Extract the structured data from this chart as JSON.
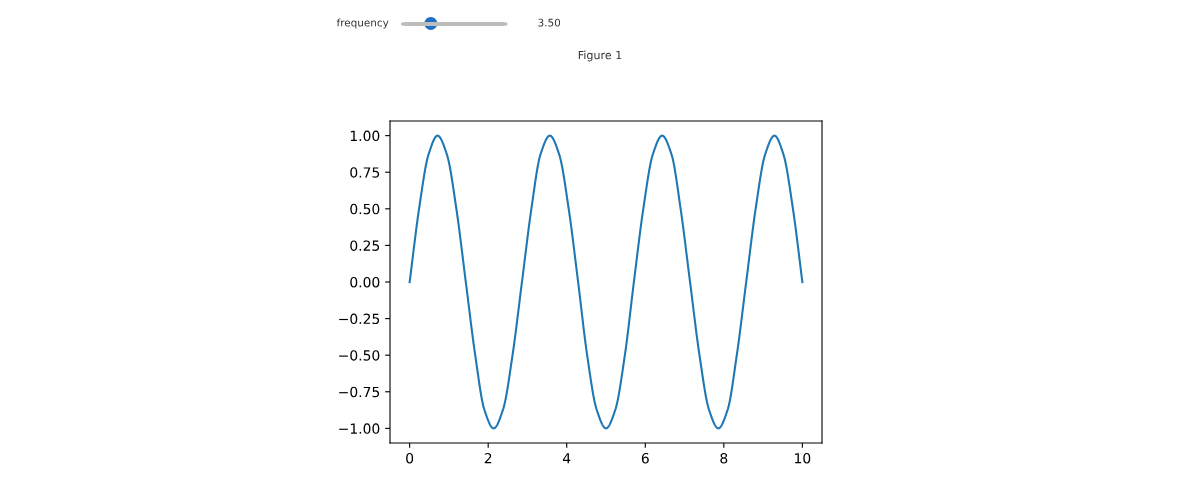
{
  "chart_data": {
    "type": "line",
    "title": "Figure 1",
    "annotations": [
      "frequency",
      "3.50"
    ],
    "x": [
      0,
      0.24,
      0.48,
      0.71,
      0.95,
      1.19,
      1.43,
      1.67,
      1.9,
      2.14,
      2.38,
      2.62,
      2.86,
      3.1,
      3.33,
      3.57,
      3.81,
      4.05,
      4.29,
      4.52,
      4.76,
      5,
      5.24,
      5.48,
      5.71,
      5.95,
      6.19,
      6.43,
      6.67,
      6.9,
      7.14,
      7.38,
      7.62,
      7.86,
      8.1,
      8.33,
      8.57,
      8.81,
      9.05,
      9.29,
      9.52,
      9.76,
      10
    ],
    "series": [
      {
        "color": "#1f77b4",
        "values": [
          0,
          0.5,
          0.87,
          1,
          0.87,
          0.5,
          0,
          -0.5,
          -0.87,
          -1,
          -0.87,
          -0.5,
          0,
          0.5,
          0.87,
          1,
          0.87,
          0.5,
          0,
          -0.5,
          -0.87,
          -1,
          -0.87,
          -0.5,
          0,
          0.5,
          0.87,
          1,
          0.87,
          0.5,
          0,
          -0.5,
          -0.87,
          -1,
          -0.87,
          -0.5,
          0,
          0.5,
          0.87,
          1,
          0.87,
          0.5,
          0
        ]
      }
    ],
    "xlim": [
      -0.5,
      10.5
    ],
    "xticks": [
      0,
      2,
      4,
      6,
      8,
      10
    ],
    "ylim": [
      -1.1,
      1.1
    ],
    "yticks": [
      {
        "value": -1,
        "label": "−1.00"
      },
      {
        "value": -0.75,
        "label": "−0.75"
      },
      {
        "value": -0.5,
        "label": "−0.50"
      },
      {
        "value": -0.25,
        "label": "−0.25"
      },
      {
        "value": 0,
        "label": "0.00"
      },
      {
        "value": 0.25,
        "label": "0.25"
      },
      {
        "value": 0.5,
        "label": "0.50"
      },
      {
        "value": 0.75,
        "label": "0.75"
      },
      {
        "value": 1,
        "label": "1.00"
      }
    ],
    "grid": false,
    "marker": "none",
    "line_style": "solid"
  }
}
